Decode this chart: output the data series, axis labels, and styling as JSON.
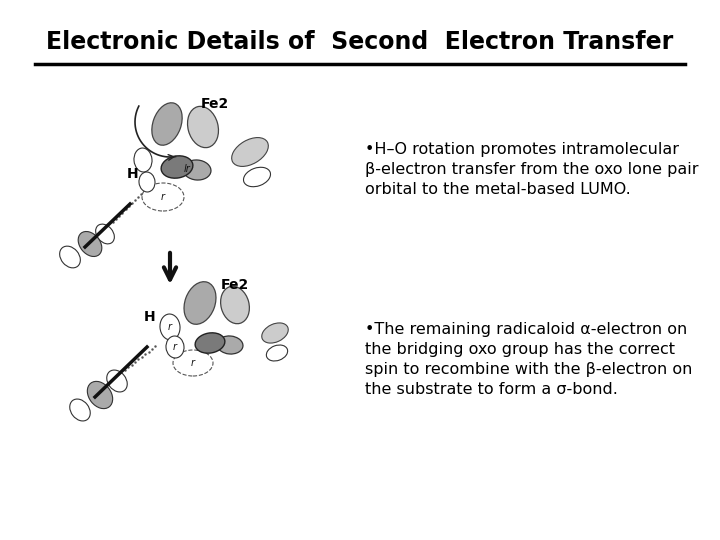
{
  "title": "Electronic Details of  Second  Electron Transfer",
  "title_fontsize": 17,
  "bg_color": "#ffffff",
  "text_color": "#000000",
  "bullet1_line1": "•H–O rotation promotes intramolecular",
  "bullet1_line2": "β-electron transfer from the oxo lone pair",
  "bullet1_line3": "orbital to the metal-based LUMO.",
  "bullet2_line1": "•The remaining radicaloid α-electron on",
  "bullet2_line2": "the bridging oxo group has the correct",
  "bullet2_line3": "spin to recombine with the β-electron on",
  "bullet2_line4": "the substrate to form a σ-bond.",
  "bullet_fontsize": 11.5,
  "label_H": "H",
  "label_Fe2": "Fe2",
  "line_color": "#000000",
  "gray_dark": "#7a7a7a",
  "gray_mid": "#aaaaaa",
  "gray_light": "#cccccc",
  "gray_white": "#e8e8e8"
}
